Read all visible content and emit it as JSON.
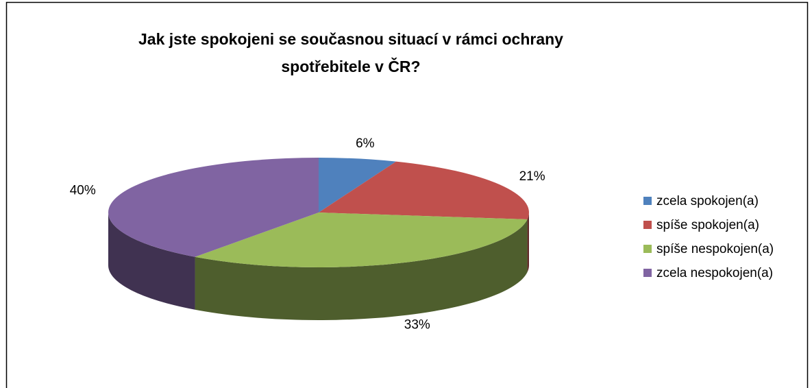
{
  "chart_data": {
    "type": "pie",
    "title": "Jak jste spokojeni se současnou situací v rámci ochrany spotřebitele v ČR?",
    "categories": [
      "zcela spokojen(a)",
      "spíše spokojen(a)",
      "spíše nespokojen(a)",
      "zcela nespokojen(a)"
    ],
    "values": [
      6,
      21,
      33,
      40
    ],
    "value_labels": [
      "6%",
      "21%",
      "33%",
      "40%"
    ],
    "colors": [
      "#4f81bd",
      "#c0504d",
      "#9bbb59",
      "#8064a2"
    ],
    "legend": "right"
  }
}
